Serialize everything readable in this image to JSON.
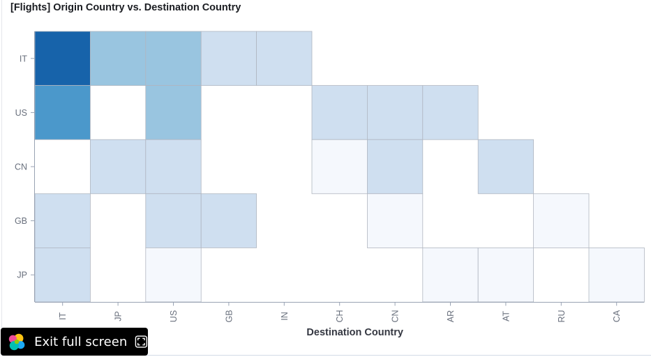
{
  "panel": {
    "title": "[Flights] Origin Country vs. Destination Country"
  },
  "exit_button": {
    "label": "Exit full screen",
    "logo_icon": "elastic-logo-icon",
    "icon": "fullscreen-exit-icon"
  },
  "colors": {
    "scale": [
      "#f5f8fd",
      "#cfdff0",
      "#c8dbee",
      "#99c5e0",
      "#93c1de",
      "#4b98cb",
      "#1763aa"
    ],
    "cell_border": "#b0b6c0",
    "axis": "#98a2b3",
    "tick_text": "#69707d",
    "axis_title": "#343741"
  },
  "chart_data": {
    "type": "heatmap",
    "title": "",
    "xlabel": "Destination Country",
    "ylabel": "",
    "x": [
      "IT",
      "JP",
      "US",
      "GB",
      "IN",
      "CH",
      "CN",
      "AR",
      "AT",
      "RU",
      "CA"
    ],
    "y": [
      "IT",
      "US",
      "CN",
      "GB",
      "JP"
    ],
    "value_scale": "relative 0-6",
    "cells": [
      {
        "x": "IT",
        "y": "IT",
        "v": 6
      },
      {
        "x": "JP",
        "y": "IT",
        "v": 3
      },
      {
        "x": "US",
        "y": "IT",
        "v": 3
      },
      {
        "x": "GB",
        "y": "IT",
        "v": 1
      },
      {
        "x": "IN",
        "y": "IT",
        "v": 1
      },
      {
        "x": "IT",
        "y": "US",
        "v": 5
      },
      {
        "x": "US",
        "y": "US",
        "v": 3
      },
      {
        "x": "CH",
        "y": "US",
        "v": 1
      },
      {
        "x": "CN",
        "y": "US",
        "v": 1
      },
      {
        "x": "AR",
        "y": "US",
        "v": 1
      },
      {
        "x": "JP",
        "y": "CN",
        "v": 1
      },
      {
        "x": "US",
        "y": "CN",
        "v": 1
      },
      {
        "x": "CH",
        "y": "CN",
        "v": 0
      },
      {
        "x": "CN",
        "y": "CN",
        "v": 1
      },
      {
        "x": "AT",
        "y": "CN",
        "v": 1
      },
      {
        "x": "IT",
        "y": "GB",
        "v": 1
      },
      {
        "x": "US",
        "y": "GB",
        "v": 1
      },
      {
        "x": "GB",
        "y": "GB",
        "v": 1
      },
      {
        "x": "CN",
        "y": "GB",
        "v": 0
      },
      {
        "x": "RU",
        "y": "GB",
        "v": 0
      },
      {
        "x": "IT",
        "y": "JP",
        "v": 1
      },
      {
        "x": "US",
        "y": "JP",
        "v": 0
      },
      {
        "x": "AR",
        "y": "JP",
        "v": 0
      },
      {
        "x": "AT",
        "y": "JP",
        "v": 0
      },
      {
        "x": "CA",
        "y": "JP",
        "v": 0
      }
    ],
    "grid": false,
    "legend": "none"
  }
}
